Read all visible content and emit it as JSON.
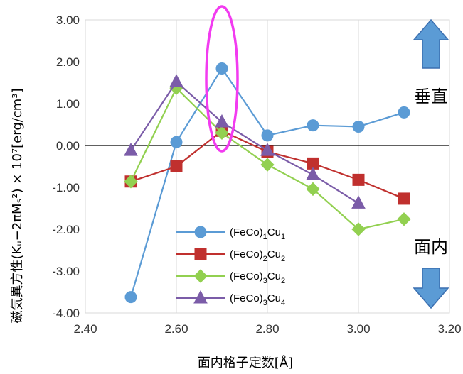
{
  "chart_data": {
    "type": "line",
    "xlabel": "面内格子定数[Å]",
    "ylabel": "磁気異方性(Kᵤ−2πMₛ²) × 10⁷[erg/cm³]",
    "xlim": [
      2.4,
      3.2
    ],
    "ylim": [
      -4.0,
      3.0
    ],
    "x_ticks": [
      "2.40",
      "2.60",
      "2.80",
      "3.00",
      "3.20"
    ],
    "y_ticks": [
      "3.00",
      "2.00",
      "1.00",
      "0.00",
      "-1.00",
      "-2.00",
      "-3.00",
      "-4.00"
    ],
    "grid": "vertical",
    "legend_position": "bottom-center",
    "series": [
      {
        "name": "(FeCo)1Cu1",
        "name_main": "(FeCo)",
        "name_sub1": "1",
        "name_mid": "Cu",
        "name_sub2": "1",
        "color": "#5B9BD5",
        "marker": "circle",
        "x": [
          2.5,
          2.6,
          2.7,
          2.8,
          2.9,
          3.0,
          3.1
        ],
        "y": [
          -3.62,
          0.08,
          1.84,
          0.24,
          0.48,
          0.45,
          0.79
        ]
      },
      {
        "name": "(FeCo)2Cu2",
        "name_main": "(FeCo)",
        "name_sub1": "2",
        "name_mid": "Cu",
        "name_sub2": "2",
        "color": "#C0302E",
        "marker": "square",
        "x": [
          2.5,
          2.6,
          2.7,
          2.8,
          2.9,
          3.0,
          3.1
        ],
        "y": [
          -0.86,
          -0.5,
          0.35,
          -0.15,
          -0.43,
          -0.82,
          -1.27
        ]
      },
      {
        "name": "(FeCo)3Cu2",
        "name_main": "(FeCo)",
        "name_sub1": "3",
        "name_mid": "Cu",
        "name_sub2": "2",
        "color": "#92D050",
        "marker": "diamond",
        "x": [
          2.5,
          2.6,
          2.7,
          2.8,
          2.9,
          3.0,
          3.1
        ],
        "y": [
          -0.86,
          1.37,
          0.3,
          -0.46,
          -1.04,
          -2.0,
          -1.76
        ]
      },
      {
        "name": "(FeCo)3Cu4",
        "name_main": "(FeCo)",
        "name_sub1": "3",
        "name_mid": "Cu",
        "name_sub2": "4",
        "color": "#7B5CA8",
        "marker": "triangle",
        "x": [
          2.5,
          2.6,
          2.7,
          2.8,
          2.9,
          3.0
        ],
        "y": [
          -0.12,
          1.52,
          0.56,
          -0.12,
          -0.7,
          -1.38
        ]
      }
    ],
    "annotations": {
      "perpendicular_label": "垂直",
      "in_plane_label": "面内",
      "highlight_x": 2.7,
      "highlight_color": "#F23BF0",
      "arrow_color": "#5B9BD5"
    }
  }
}
